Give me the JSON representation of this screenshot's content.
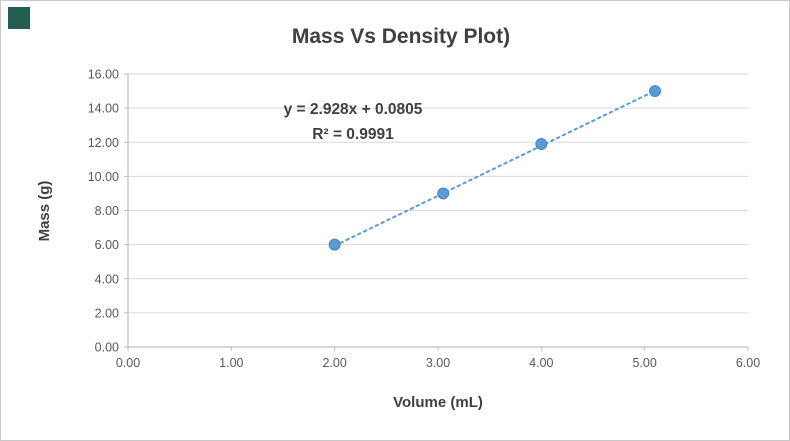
{
  "corner_accent_color": "#235e52",
  "chart_data": {
    "type": "scatter",
    "title": "Mass Vs Density Plot)",
    "xlabel": "Volume (mL)",
    "ylabel": "Mass (g)",
    "x": [
      2.0,
      3.05,
      4.0,
      5.1
    ],
    "y": [
      6.0,
      9.0,
      11.9,
      15.0
    ],
    "xlim": [
      0,
      6
    ],
    "ylim": [
      0,
      16
    ],
    "x_ticks": [
      0,
      1,
      2,
      3,
      4,
      5,
      6
    ],
    "x_tick_labels": [
      "0.00",
      "1.00",
      "2.00",
      "3.00",
      "4.00",
      "5.00",
      "6.00"
    ],
    "y_ticks": [
      0,
      2,
      4,
      6,
      8,
      10,
      12,
      14,
      16
    ],
    "y_tick_labels": [
      "0.00",
      "2.00",
      "4.00",
      "6.00",
      "8.00",
      "10.00",
      "12.00",
      "14.00",
      "16.00"
    ],
    "grid": "horizontal-major",
    "legend": "none",
    "trendline": {
      "slope": 2.928,
      "intercept": 0.0805,
      "x_start": 2.0,
      "x_end": 5.12,
      "style": "dotted"
    },
    "annotations": {
      "equation": "y = 2.928x + 0.0805",
      "r_squared": "R² = 0.9991"
    },
    "colors": {
      "marker": "#5b9bd5",
      "trendline": "#5b9bd5",
      "gridline": "#d9d9d9",
      "axis": "#bfbfbf",
      "tick_text": "#595959",
      "title_text": "#404040",
      "annotation_text": "#404040"
    }
  }
}
